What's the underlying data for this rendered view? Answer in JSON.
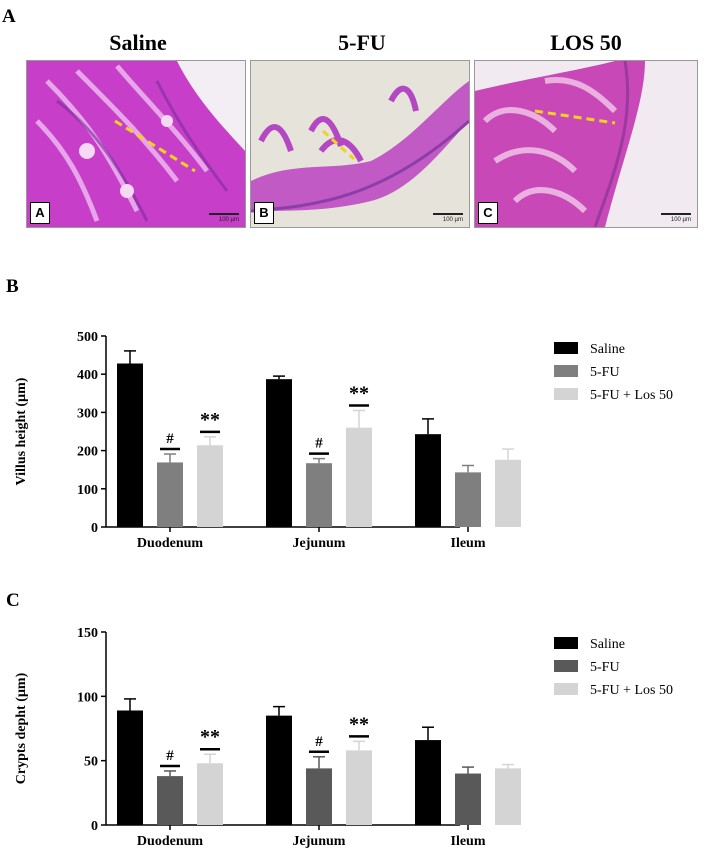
{
  "figure": {
    "panel_a_letter": "A",
    "panel_b_letter": "B",
    "panel_c_letter": "C"
  },
  "micrographs": [
    {
      "title": "Saline",
      "label": "A",
      "scale": "100 µm",
      "tone": "#c040c0"
    },
    {
      "title": "5-FU",
      "label": "B",
      "scale": "100 µm",
      "tone": "#b050c8"
    },
    {
      "title": "LOS 50",
      "label": "C",
      "scale": "100 µm",
      "tone": "#c848b8"
    }
  ],
  "colors": {
    "saline": "#000000",
    "fu_b": "#7f7f7f",
    "fu_c": "#595959",
    "los": "#d4d4d4",
    "tissue": "#c73ec8",
    "background_slide": "#e6e3da",
    "dash": "#f2d31b"
  },
  "chart_data": [
    {
      "type": "bar",
      "panel": "B",
      "categories": [
        "Duodenum",
        "Jejunum",
        "Ileum"
      ],
      "ylabel": "Villus height (µm)",
      "xlabel": "",
      "ylim": [
        0,
        500
      ],
      "yticks": [
        0,
        100,
        200,
        300,
        400,
        500
      ],
      "grid": false,
      "legend_position": "right",
      "series": [
        {
          "name": "Saline",
          "color": "#000000",
          "values": [
            428,
            387,
            243
          ],
          "errors": [
            33,
            8,
            40
          ]
        },
        {
          "name": "5-FU",
          "color": "#7f7f7f",
          "values": [
            169,
            167,
            143
          ],
          "errors": [
            22,
            12,
            18
          ]
        },
        {
          "name": "5-FU + Los 50",
          "color": "#d4d4d4",
          "values": [
            214,
            260,
            176
          ],
          "errors": [
            22,
            45,
            28
          ]
        }
      ],
      "annotations": [
        {
          "category": "Duodenum",
          "series": "5-FU",
          "text": "#"
        },
        {
          "category": "Duodenum",
          "series": "5-FU + Los 50",
          "text": "**"
        },
        {
          "category": "Jejunum",
          "series": "5-FU",
          "text": "#"
        },
        {
          "category": "Jejunum",
          "series": "5-FU + Los 50",
          "text": "**"
        }
      ]
    },
    {
      "type": "bar",
      "panel": "C",
      "categories": [
        "Duodenum",
        "Jejunum",
        "Ileum"
      ],
      "ylabel": "Crypts depht (µm)",
      "xlabel": "",
      "ylim": [
        0,
        150
      ],
      "yticks": [
        0,
        50,
        100,
        150
      ],
      "grid": false,
      "legend_position": "right",
      "series": [
        {
          "name": "Saline",
          "color": "#000000",
          "values": [
            89,
            85,
            66
          ],
          "errors": [
            9,
            7,
            10
          ]
        },
        {
          "name": "5-FU",
          "color": "#595959",
          "values": [
            38,
            44,
            40
          ],
          "errors": [
            4,
            9,
            5
          ]
        },
        {
          "name": "5-FU + Los 50",
          "color": "#d4d4d4",
          "values": [
            48,
            58,
            44
          ],
          "errors": [
            7,
            7,
            3
          ]
        }
      ],
      "annotations": [
        {
          "category": "Duodenum",
          "series": "5-FU",
          "text": "#"
        },
        {
          "category": "Duodenum",
          "series": "5-FU + Los 50",
          "text": "**"
        },
        {
          "category": "Jejunum",
          "series": "5-FU",
          "text": "#"
        },
        {
          "category": "Jejunum",
          "series": "5-FU + Los 50",
          "text": "**"
        }
      ]
    }
  ]
}
